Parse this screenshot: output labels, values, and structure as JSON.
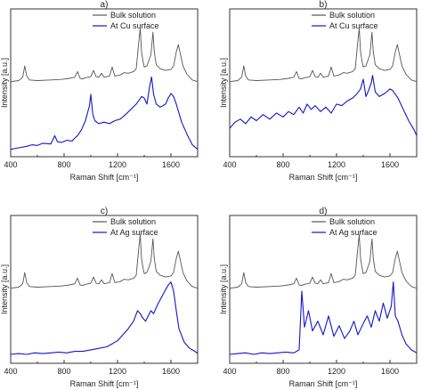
{
  "chart_data": [
    {
      "type": "line",
      "panel_label": "a)",
      "xlabel": "Raman Shift [cm⁻¹]",
      "ylabel": "Intensity [a.u.]",
      "xlim": [
        400,
        1800
      ],
      "xticks": [
        "400",
        "800",
        "1200",
        "1600"
      ],
      "legend_position": "top-right",
      "series": [
        {
          "name": "Bulk solution",
          "color": "#555555",
          "x": [
            400,
            460,
            490,
            505,
            520,
            540,
            600,
            700,
            780,
            840,
            880,
            900,
            920,
            940,
            960,
            1000,
            1020,
            1040,
            1060,
            1080,
            1100,
            1140,
            1160,
            1180,
            1220,
            1250,
            1280,
            1320,
            1340,
            1360,
            1370,
            1380,
            1390,
            1400,
            1420,
            1450,
            1465,
            1475,
            1490,
            1520,
            1560,
            1600,
            1620,
            1640,
            1655,
            1670,
            1690,
            1720,
            1760,
            1800
          ],
          "y": [
            0.02,
            0.04,
            0.1,
            0.3,
            0.12,
            0.05,
            0.04,
            0.05,
            0.06,
            0.08,
            0.1,
            0.2,
            0.08,
            0.07,
            0.09,
            0.11,
            0.22,
            0.11,
            0.1,
            0.17,
            0.1,
            0.12,
            0.28,
            0.12,
            0.14,
            0.18,
            0.17,
            0.2,
            0.25,
            0.75,
            0.97,
            0.55,
            0.4,
            0.28,
            0.3,
            0.5,
            0.9,
            0.55,
            0.32,
            0.25,
            0.22,
            0.24,
            0.3,
            0.55,
            0.68,
            0.52,
            0.3,
            0.15,
            0.05,
            0.02
          ]
        },
        {
          "name": "At Cu surface",
          "color": "#1515c8",
          "x": [
            400,
            460,
            520,
            560,
            600,
            640,
            700,
            730,
            750,
            780,
            820,
            860,
            880,
            900,
            930,
            960,
            990,
            1000,
            1015,
            1030,
            1060,
            1100,
            1140,
            1180,
            1220,
            1260,
            1300,
            1340,
            1380,
            1400,
            1420,
            1440,
            1455,
            1470,
            1490,
            1520,
            1560,
            1580,
            1600,
            1620,
            1640,
            1680,
            1720,
            1760,
            1800
          ],
          "y": [
            0.02,
            0.04,
            0.06,
            0.08,
            0.07,
            0.1,
            0.09,
            0.2,
            0.12,
            0.11,
            0.14,
            0.13,
            0.17,
            0.2,
            0.28,
            0.4,
            0.6,
            0.75,
            0.48,
            0.4,
            0.36,
            0.38,
            0.36,
            0.4,
            0.42,
            0.48,
            0.55,
            0.62,
            0.72,
            0.7,
            0.62,
            0.85,
            0.98,
            0.75,
            0.62,
            0.58,
            0.62,
            0.7,
            0.76,
            0.72,
            0.62,
            0.38,
            0.22,
            0.08,
            0.02
          ]
        }
      ]
    },
    {
      "type": "line",
      "panel_label": "b)",
      "xlabel": "Raman Shift [cm⁻¹]",
      "ylabel": "Intensity [a.u.]",
      "xlim": [
        400,
        1800
      ],
      "xticks": [
        "400",
        "800",
        "1200",
        "1600"
      ],
      "legend_position": "top-right",
      "series": [
        {
          "name": "Bulk solution",
          "color": "#555555",
          "x": [
            400,
            460,
            490,
            505,
            520,
            540,
            600,
            700,
            780,
            840,
            880,
            900,
            920,
            940,
            960,
            1000,
            1020,
            1040,
            1060,
            1080,
            1100,
            1140,
            1160,
            1180,
            1220,
            1250,
            1280,
            1320,
            1340,
            1360,
            1370,
            1380,
            1390,
            1400,
            1420,
            1450,
            1465,
            1475,
            1490,
            1520,
            1560,
            1600,
            1620,
            1640,
            1655,
            1670,
            1690,
            1720,
            1760,
            1800
          ],
          "y": [
            0.02,
            0.04,
            0.1,
            0.3,
            0.12,
            0.05,
            0.04,
            0.05,
            0.06,
            0.08,
            0.1,
            0.2,
            0.08,
            0.07,
            0.09,
            0.11,
            0.22,
            0.11,
            0.1,
            0.17,
            0.1,
            0.12,
            0.28,
            0.12,
            0.14,
            0.18,
            0.17,
            0.2,
            0.25,
            0.75,
            0.97,
            0.55,
            0.4,
            0.28,
            0.3,
            0.5,
            0.9,
            0.55,
            0.32,
            0.25,
            0.22,
            0.24,
            0.3,
            0.55,
            0.68,
            0.52,
            0.3,
            0.15,
            0.05,
            0.02
          ]
        },
        {
          "name": "At Cu surface",
          "color": "#1515c8",
          "x": [
            400,
            440,
            480,
            520,
            560,
            600,
            650,
            700,
            750,
            800,
            840,
            880,
            920,
            950,
            980,
            1010,
            1040,
            1080,
            1120,
            1160,
            1200,
            1240,
            1280,
            1320,
            1350,
            1380,
            1400,
            1420,
            1440,
            1460,
            1470,
            1490,
            1520,
            1560,
            1600,
            1620,
            1660,
            1700,
            1740,
            1780,
            1800
          ],
          "y": [
            0.3,
            0.38,
            0.42,
            0.36,
            0.45,
            0.4,
            0.48,
            0.42,
            0.5,
            0.45,
            0.52,
            0.48,
            0.58,
            0.5,
            0.62,
            0.55,
            0.6,
            0.52,
            0.58,
            0.5,
            0.62,
            0.6,
            0.66,
            0.7,
            0.75,
            0.82,
            0.95,
            0.72,
            0.8,
            0.9,
            1.0,
            0.78,
            0.72,
            0.76,
            0.82,
            0.8,
            0.7,
            0.55,
            0.4,
            0.28,
            0.2
          ]
        }
      ]
    },
    {
      "type": "line",
      "panel_label": "c)",
      "xlabel": "Raman Shift [cm⁻¹]",
      "ylabel": "Intensity [a.u.]",
      "xlim": [
        400,
        1800
      ],
      "xticks": [
        "400",
        "800",
        "1200",
        "1600"
      ],
      "legend_position": "top-right",
      "series": [
        {
          "name": "Bulk solution",
          "color": "#555555",
          "x": [
            400,
            460,
            490,
            505,
            520,
            540,
            600,
            700,
            780,
            840,
            880,
            900,
            920,
            940,
            960,
            1000,
            1020,
            1040,
            1060,
            1080,
            1100,
            1140,
            1160,
            1180,
            1220,
            1250,
            1280,
            1320,
            1340,
            1360,
            1370,
            1380,
            1390,
            1400,
            1420,
            1450,
            1465,
            1475,
            1490,
            1520,
            1560,
            1600,
            1620,
            1640,
            1655,
            1670,
            1690,
            1720,
            1760,
            1800
          ],
          "y": [
            0.02,
            0.04,
            0.1,
            0.3,
            0.12,
            0.05,
            0.04,
            0.05,
            0.06,
            0.08,
            0.1,
            0.2,
            0.08,
            0.07,
            0.09,
            0.11,
            0.22,
            0.11,
            0.1,
            0.17,
            0.1,
            0.12,
            0.28,
            0.12,
            0.14,
            0.18,
            0.17,
            0.2,
            0.25,
            0.75,
            0.97,
            0.55,
            0.4,
            0.28,
            0.3,
            0.5,
            0.9,
            0.55,
            0.32,
            0.25,
            0.22,
            0.24,
            0.3,
            0.55,
            0.68,
            0.52,
            0.3,
            0.15,
            0.05,
            0.02
          ]
        },
        {
          "name": "At Ag surface",
          "color": "#1515c8",
          "x": [
            400,
            460,
            520,
            580,
            640,
            700,
            760,
            820,
            880,
            940,
            1000,
            1060,
            1120,
            1160,
            1200,
            1240,
            1280,
            1320,
            1350,
            1370,
            1390,
            1410,
            1430,
            1450,
            1470,
            1500,
            1530,
            1560,
            1580,
            1600,
            1620,
            1640,
            1660,
            1700,
            1740,
            1780,
            1800
          ],
          "y": [
            0.04,
            0.05,
            0.04,
            0.06,
            0.05,
            0.06,
            0.07,
            0.06,
            0.08,
            0.08,
            0.1,
            0.12,
            0.14,
            0.18,
            0.22,
            0.3,
            0.38,
            0.48,
            0.62,
            0.58,
            0.52,
            0.48,
            0.55,
            0.62,
            0.58,
            0.7,
            0.8,
            0.9,
            0.96,
            1.0,
            0.88,
            0.62,
            0.38,
            0.2,
            0.12,
            0.08,
            0.05
          ]
        }
      ]
    },
    {
      "type": "line",
      "panel_label": "d)",
      "xlabel": "Raman Shift [cm⁻¹]",
      "ylabel": "Intensity [a.u.]",
      "xlim": [
        400,
        1800
      ],
      "xticks": [
        "400",
        "800",
        "1200",
        "1600"
      ],
      "legend_position": "top-right",
      "series": [
        {
          "name": "Bulk solution",
          "color": "#555555",
          "x": [
            400,
            460,
            490,
            505,
            520,
            540,
            600,
            700,
            780,
            840,
            880,
            900,
            920,
            940,
            960,
            1000,
            1020,
            1040,
            1060,
            1080,
            1100,
            1140,
            1160,
            1180,
            1220,
            1250,
            1280,
            1320,
            1340,
            1360,
            1370,
            1380,
            1390,
            1400,
            1420,
            1450,
            1465,
            1475,
            1490,
            1520,
            1560,
            1600,
            1620,
            1640,
            1655,
            1670,
            1690,
            1720,
            1760,
            1800
          ],
          "y": [
            0.02,
            0.04,
            0.1,
            0.3,
            0.12,
            0.05,
            0.04,
            0.05,
            0.06,
            0.08,
            0.1,
            0.2,
            0.08,
            0.07,
            0.09,
            0.11,
            0.22,
            0.11,
            0.1,
            0.17,
            0.1,
            0.12,
            0.28,
            0.12,
            0.14,
            0.18,
            0.17,
            0.2,
            0.25,
            0.75,
            0.97,
            0.55,
            0.4,
            0.28,
            0.3,
            0.5,
            0.9,
            0.55,
            0.32,
            0.25,
            0.22,
            0.24,
            0.3,
            0.55,
            0.68,
            0.52,
            0.3,
            0.15,
            0.05,
            0.02
          ]
        },
        {
          "name": "At Ag surface",
          "color": "#1515c8",
          "x": [
            400,
            460,
            520,
            580,
            640,
            700,
            760,
            820,
            880,
            920,
            940,
            960,
            990,
            1020,
            1060,
            1100,
            1140,
            1180,
            1220,
            1260,
            1300,
            1330,
            1360,
            1400,
            1430,
            1460,
            1490,
            1520,
            1550,
            1580,
            1610,
            1625,
            1640,
            1660,
            1690,
            1720,
            1760,
            1800
          ],
          "y": [
            0.04,
            0.05,
            0.06,
            0.04,
            0.06,
            0.05,
            0.06,
            0.07,
            0.06,
            0.1,
            0.88,
            0.4,
            0.62,
            0.35,
            0.48,
            0.3,
            0.55,
            0.28,
            0.42,
            0.25,
            0.35,
            0.48,
            0.3,
            0.45,
            0.55,
            0.4,
            0.62,
            0.48,
            0.72,
            0.52,
            0.68,
            1.0,
            0.55,
            0.48,
            0.3,
            0.18,
            0.1,
            0.06
          ]
        }
      ]
    }
  ]
}
